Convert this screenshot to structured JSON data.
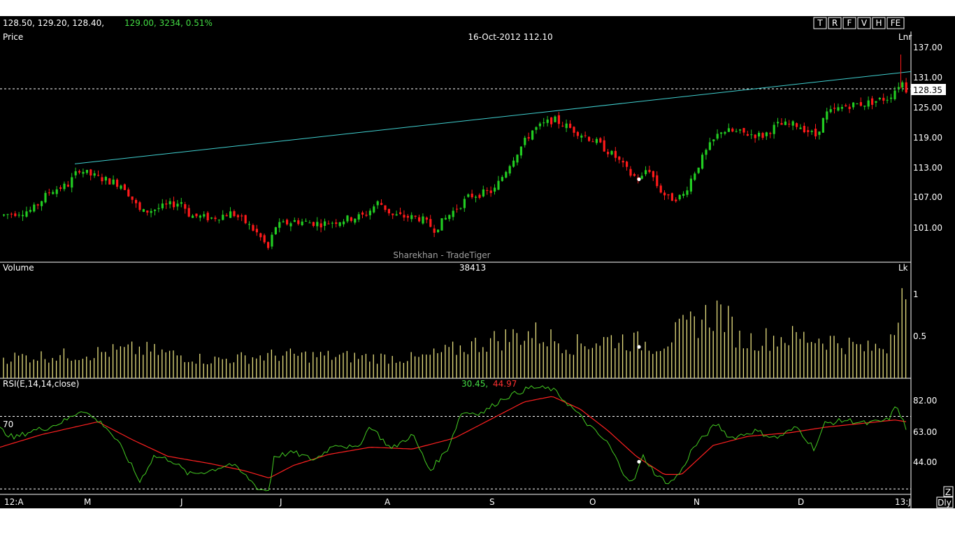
{
  "ohlc_header": {
    "open_high_low": "128.50, 129.20, 128.40,",
    "last_change": "129.00,  3234, 0.51%"
  },
  "toolbar_buttons": [
    "T",
    "R",
    "F",
    "V",
    "H",
    "FE"
  ],
  "price_panel": {
    "label": "Price",
    "cursor_info": "16-Oct-2012 112.10",
    "scale_mode": "Lnr",
    "watermark": "Sharekhan - TradeTiger",
    "current_price_tag": "128.35",
    "y_ticks": [
      "137.00",
      "131.00",
      "125.00",
      "119.00",
      "113.00",
      "107.00",
      "101.00"
    ]
  },
  "volume_panel": {
    "label": "Volume",
    "cursor_value": "38413",
    "unit": "Lk",
    "y_ticks": [
      "1",
      "0.5"
    ]
  },
  "rsi_panel": {
    "label": "RSI(E,14,14,close)",
    "value_rsi": "30.45,",
    "value_signal": " 44.97",
    "level_label": "70",
    "y_ticks": [
      "82.00",
      "63.00",
      "44.00"
    ]
  },
  "x_axis": {
    "labels": [
      "12:A",
      "M",
      "J",
      "J",
      "A",
      "S",
      "O",
      "N",
      "D",
      "13:J"
    ],
    "corner_z": "Z",
    "period": "Dly"
  },
  "colors": {
    "up": "#22cc22",
    "down": "#ff1a1a",
    "trendline": "#40d0d0",
    "volume": "#e8e080",
    "rsi": "#44cc22",
    "signal": "#ff2020"
  },
  "chart_data": {
    "type": "candlestick",
    "x_range": [
      "2012-04",
      "2013-01"
    ],
    "price_ylim": [
      97,
      139
    ],
    "volume_ylim": [
      0,
      1.2
    ],
    "rsi_ylim": [
      27,
      91
    ],
    "rsi_levels": [
      70,
      30
    ],
    "trendline": [
      {
        "x": "2012-05",
        "y": 114.9
      },
      {
        "x": "2013-01",
        "y": 131.7
      }
    ],
    "support_line_y": 128.6,
    "price_waypoints": [
      [
        0,
        105.5
      ],
      [
        20,
        106
      ],
      [
        45,
        106.5
      ],
      [
        70,
        110
      ],
      [
        95,
        111
      ],
      [
        112,
        114
      ],
      [
        125,
        113
      ],
      [
        150,
        112
      ],
      [
        175,
        111
      ],
      [
        200,
        106
      ],
      [
        230,
        107
      ],
      [
        258,
        108
      ],
      [
        270,
        105.5
      ],
      [
        300,
        105
      ],
      [
        330,
        106
      ],
      [
        352,
        104
      ],
      [
        368,
        102
      ],
      [
        382,
        99.5
      ],
      [
        392,
        103.5
      ],
      [
        420,
        104.5
      ],
      [
        460,
        104
      ],
      [
        500,
        105
      ],
      [
        520,
        105.5
      ],
      [
        540,
        108
      ],
      [
        560,
        105.5
      ],
      [
        600,
        105
      ],
      [
        620,
        103
      ],
      [
        640,
        105.5
      ],
      [
        670,
        109
      ],
      [
        705,
        110
      ],
      [
        730,
        115.5
      ],
      [
        760,
        121
      ],
      [
        790,
        123
      ],
      [
        820,
        121
      ],
      [
        850,
        119
      ],
      [
        880,
        116
      ],
      [
        900,
        113
      ],
      [
        915,
        112
      ],
      [
        925,
        114.5
      ],
      [
        940,
        110.5
      ],
      [
        955,
        108.5
      ],
      [
        975,
        109
      ],
      [
        990,
        113
      ],
      [
        1010,
        117.5
      ],
      [
        1030,
        121
      ],
      [
        1060,
        120.5
      ],
      [
        1090,
        120
      ],
      [
        1110,
        122
      ],
      [
        1140,
        122
      ],
      [
        1165,
        120
      ],
      [
        1180,
        124
      ],
      [
        1210,
        125.5
      ],
      [
        1240,
        126
      ],
      [
        1270,
        127
      ],
      [
        1282,
        129
      ],
      [
        1288,
        130
      ],
      [
        1294,
        128.4
      ]
    ],
    "volume_waypoints": [
      [
        0,
        0.25
      ],
      [
        100,
        0.28
      ],
      [
        200,
        0.35
      ],
      [
        300,
        0.22
      ],
      [
        400,
        0.28
      ],
      [
        500,
        0.26
      ],
      [
        600,
        0.24
      ],
      [
        700,
        0.45
      ],
      [
        760,
        0.55
      ],
      [
        820,
        0.4
      ],
      [
        880,
        0.48
      ],
      [
        940,
        0.4
      ],
      [
        1000,
        0.7
      ],
      [
        1030,
        0.82
      ],
      [
        1060,
        0.45
      ],
      [
        1120,
        0.5
      ],
      [
        1180,
        0.48
      ],
      [
        1240,
        0.35
      ],
      [
        1270,
        0.4
      ],
      [
        1290,
        1.15
      ],
      [
        1297,
        0.72
      ]
    ],
    "rsi_waypoints": [
      [
        0,
        63
      ],
      [
        20,
        58
      ],
      [
        45,
        62
      ],
      [
        70,
        64
      ],
      [
        95,
        68
      ],
      [
        118,
        74
      ],
      [
        130,
        70
      ],
      [
        150,
        65
      ],
      [
        170,
        55
      ],
      [
        185,
        45
      ],
      [
        200,
        34
      ],
      [
        220,
        48
      ],
      [
        245,
        46
      ],
      [
        270,
        38
      ],
      [
        300,
        40
      ],
      [
        330,
        44
      ],
      [
        355,
        36
      ],
      [
        370,
        30
      ],
      [
        385,
        29
      ],
      [
        392,
        48
      ],
      [
        420,
        50
      ],
      [
        450,
        46
      ],
      [
        480,
        55
      ],
      [
        510,
        52
      ],
      [
        530,
        65
      ],
      [
        545,
        58
      ],
      [
        560,
        52
      ],
      [
        590,
        60
      ],
      [
        615,
        40
      ],
      [
        640,
        52
      ],
      [
        660,
        72
      ],
      [
        690,
        72
      ],
      [
        720,
        80
      ],
      [
        760,
        86
      ],
      [
        790,
        85
      ],
      [
        810,
        78
      ],
      [
        830,
        70
      ],
      [
        850,
        62
      ],
      [
        870,
        55
      ],
      [
        890,
        40
      ],
      [
        905,
        33
      ],
      [
        920,
        48
      ],
      [
        940,
        37
      ],
      [
        958,
        33
      ],
      [
        975,
        40
      ],
      [
        990,
        52
      ],
      [
        1010,
        60
      ],
      [
        1025,
        66
      ],
      [
        1045,
        58
      ],
      [
        1080,
        62
      ],
      [
        1110,
        58
      ],
      [
        1140,
        64
      ],
      [
        1165,
        52
      ],
      [
        1180,
        66
      ],
      [
        1210,
        68
      ],
      [
        1240,
        66
      ],
      [
        1270,
        68
      ],
      [
        1283,
        76
      ],
      [
        1297,
        62
      ]
    ],
    "signal_waypoints": [
      [
        0,
        53
      ],
      [
        60,
        60
      ],
      [
        140,
        67
      ],
      [
        190,
        57
      ],
      [
        240,
        48
      ],
      [
        300,
        44
      ],
      [
        350,
        40
      ],
      [
        385,
        36
      ],
      [
        420,
        43
      ],
      [
        470,
        49
      ],
      [
        530,
        53
      ],
      [
        590,
        52
      ],
      [
        650,
        58
      ],
      [
        700,
        68
      ],
      [
        750,
        78
      ],
      [
        790,
        81
      ],
      [
        830,
        74
      ],
      [
        870,
        62
      ],
      [
        910,
        48
      ],
      [
        950,
        38
      ],
      [
        975,
        38
      ],
      [
        1020,
        54
      ],
      [
        1070,
        59
      ],
      [
        1130,
        61
      ],
      [
        1180,
        64
      ],
      [
        1230,
        66
      ],
      [
        1280,
        68
      ],
      [
        1297,
        67
      ]
    ]
  }
}
